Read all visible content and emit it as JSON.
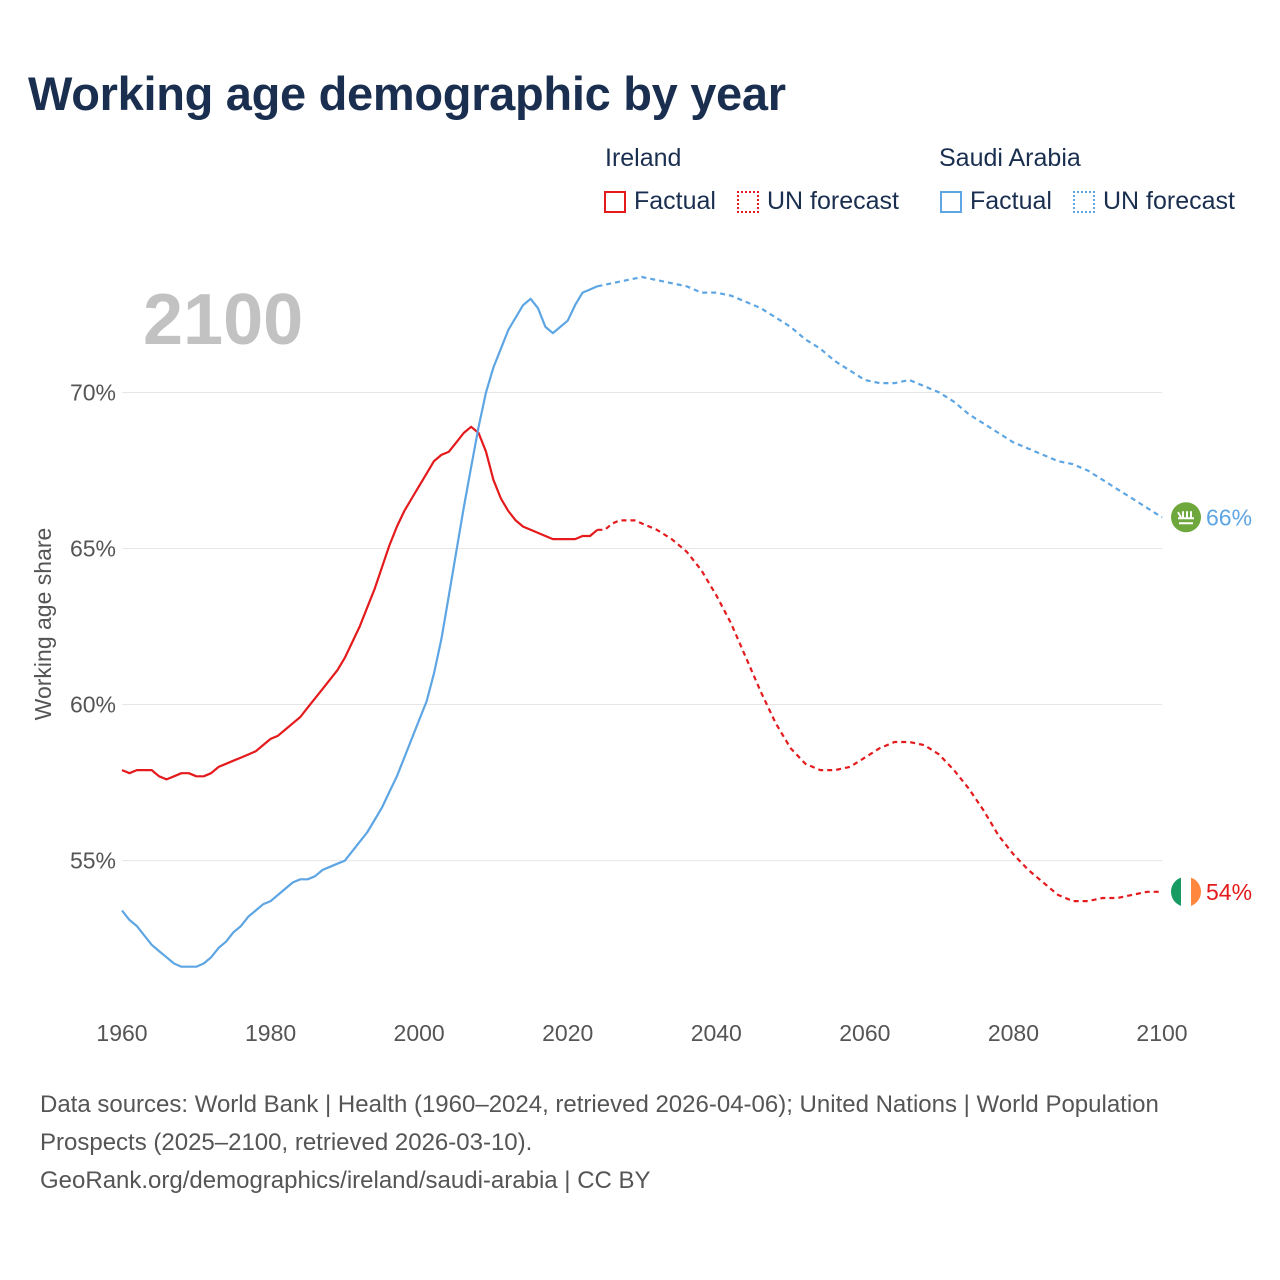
{
  "title": "Working age demographic by year",
  "legend": {
    "groups": [
      {
        "name": "Ireland",
        "color": "#e41a1c",
        "factual_label": "Factual",
        "forecast_label": "UN forecast"
      },
      {
        "name": "Saudi Arabia",
        "color": "#5da5e3",
        "factual_label": "Factual",
        "forecast_label": "UN forecast"
      }
    ]
  },
  "source": {
    "line1": "Data sources: World Bank | Health (1960–2024, retrieved 2026-04-06); United Nations | World Population Prospects (2025–2100, retrieved 2026-03-10).",
    "line2": "GeoRank.org/demographics/ireland/saudi-arabia | CC BY"
  },
  "chart_data": {
    "type": "line",
    "title": "Working age demographic by year",
    "current_year_label": "2100",
    "xlabel": "",
    "ylabel": "Working age share",
    "xlim": [
      1960,
      2100
    ],
    "ylim": [
      50.5,
      74.5
    ],
    "x_ticks": [
      {
        "value": 1960,
        "label": "1960"
      },
      {
        "value": 1980,
        "label": "1980"
      },
      {
        "value": 2000,
        "label": "2000"
      },
      {
        "value": 2020,
        "label": "2020"
      },
      {
        "value": 2040,
        "label": "2040"
      },
      {
        "value": 2060,
        "label": "2060"
      },
      {
        "value": 2080,
        "label": "2080"
      },
      {
        "value": 2100,
        "label": "2100"
      }
    ],
    "y_ticks": [
      {
        "value": 55,
        "label": "55%"
      },
      {
        "value": 60,
        "label": "60%"
      },
      {
        "value": 65,
        "label": "65%"
      },
      {
        "value": 70,
        "label": "70%"
      }
    ],
    "factual_end_year": 2024,
    "series": [
      {
        "name": "Ireland",
        "color": "#e41a1c",
        "end_label": "54%",
        "flag": "ireland-flag",
        "points": [
          [
            1960,
            57.9
          ],
          [
            1961,
            57.8
          ],
          [
            1962,
            57.9
          ],
          [
            1963,
            57.9
          ],
          [
            1964,
            57.9
          ],
          [
            1965,
            57.7
          ],
          [
            1966,
            57.6
          ],
          [
            1967,
            57.7
          ],
          [
            1968,
            57.8
          ],
          [
            1969,
            57.8
          ],
          [
            1970,
            57.7
          ],
          [
            1971,
            57.7
          ],
          [
            1972,
            57.8
          ],
          [
            1973,
            58.0
          ],
          [
            1974,
            58.1
          ],
          [
            1975,
            58.2
          ],
          [
            1976,
            58.3
          ],
          [
            1977,
            58.4
          ],
          [
            1978,
            58.5
          ],
          [
            1979,
            58.7
          ],
          [
            1980,
            58.9
          ],
          [
            1981,
            59.0
          ],
          [
            1982,
            59.2
          ],
          [
            1983,
            59.4
          ],
          [
            1984,
            59.6
          ],
          [
            1985,
            59.9
          ],
          [
            1986,
            60.2
          ],
          [
            1987,
            60.5
          ],
          [
            1988,
            60.8
          ],
          [
            1989,
            61.1
          ],
          [
            1990,
            61.5
          ],
          [
            1991,
            62.0
          ],
          [
            1992,
            62.5
          ],
          [
            1993,
            63.1
          ],
          [
            1994,
            63.7
          ],
          [
            1995,
            64.4
          ],
          [
            1996,
            65.1
          ],
          [
            1997,
            65.7
          ],
          [
            1998,
            66.2
          ],
          [
            1999,
            66.6
          ],
          [
            2000,
            67.0
          ],
          [
            2001,
            67.4
          ],
          [
            2002,
            67.8
          ],
          [
            2003,
            68.0
          ],
          [
            2004,
            68.1
          ],
          [
            2005,
            68.4
          ],
          [
            2006,
            68.7
          ],
          [
            2007,
            68.9
          ],
          [
            2008,
            68.7
          ],
          [
            2009,
            68.1
          ],
          [
            2010,
            67.2
          ],
          [
            2011,
            66.6
          ],
          [
            2012,
            66.2
          ],
          [
            2013,
            65.9
          ],
          [
            2014,
            65.7
          ],
          [
            2015,
            65.6
          ],
          [
            2016,
            65.5
          ],
          [
            2017,
            65.4
          ],
          [
            2018,
            65.3
          ],
          [
            2019,
            65.3
          ],
          [
            2020,
            65.3
          ],
          [
            2021,
            65.3
          ],
          [
            2022,
            65.4
          ],
          [
            2023,
            65.4
          ],
          [
            2024,
            65.6
          ],
          [
            2025,
            65.6
          ],
          [
            2026,
            65.8
          ],
          [
            2027,
            65.9
          ],
          [
            2028,
            65.9
          ],
          [
            2029,
            65.9
          ],
          [
            2030,
            65.8
          ],
          [
            2032,
            65.6
          ],
          [
            2034,
            65.3
          ],
          [
            2036,
            64.9
          ],
          [
            2038,
            64.3
          ],
          [
            2040,
            63.5
          ],
          [
            2042,
            62.6
          ],
          [
            2044,
            61.5
          ],
          [
            2046,
            60.4
          ],
          [
            2048,
            59.4
          ],
          [
            2050,
            58.6
          ],
          [
            2052,
            58.1
          ],
          [
            2054,
            57.9
          ],
          [
            2056,
            57.9
          ],
          [
            2058,
            58.0
          ],
          [
            2060,
            58.3
          ],
          [
            2062,
            58.6
          ],
          [
            2064,
            58.8
          ],
          [
            2066,
            58.8
          ],
          [
            2068,
            58.7
          ],
          [
            2070,
            58.4
          ],
          [
            2072,
            57.9
          ],
          [
            2074,
            57.3
          ],
          [
            2076,
            56.6
          ],
          [
            2078,
            55.8
          ],
          [
            2080,
            55.2
          ],
          [
            2082,
            54.7
          ],
          [
            2084,
            54.3
          ],
          [
            2086,
            53.9
          ],
          [
            2088,
            53.7
          ],
          [
            2090,
            53.7
          ],
          [
            2092,
            53.8
          ],
          [
            2094,
            53.8
          ],
          [
            2096,
            53.9
          ],
          [
            2098,
            54.0
          ],
          [
            2100,
            54.0
          ]
        ]
      },
      {
        "name": "Saudi Arabia",
        "color": "#5da5e3",
        "end_label": "66%",
        "flag": "saudi-arabia-flag",
        "points": [
          [
            1960,
            53.4
          ],
          [
            1961,
            53.1
          ],
          [
            1962,
            52.9
          ],
          [
            1963,
            52.6
          ],
          [
            1964,
            52.3
          ],
          [
            1965,
            52.1
          ],
          [
            1966,
            51.9
          ],
          [
            1967,
            51.7
          ],
          [
            1968,
            51.6
          ],
          [
            1969,
            51.6
          ],
          [
            1970,
            51.6
          ],
          [
            1971,
            51.7
          ],
          [
            1972,
            51.9
          ],
          [
            1973,
            52.2
          ],
          [
            1974,
            52.4
          ],
          [
            1975,
            52.7
          ],
          [
            1976,
            52.9
          ],
          [
            1977,
            53.2
          ],
          [
            1978,
            53.4
          ],
          [
            1979,
            53.6
          ],
          [
            1980,
            53.7
          ],
          [
            1981,
            53.9
          ],
          [
            1982,
            54.1
          ],
          [
            1983,
            54.3
          ],
          [
            1984,
            54.4
          ],
          [
            1985,
            54.4
          ],
          [
            1986,
            54.5
          ],
          [
            1987,
            54.7
          ],
          [
            1988,
            54.8
          ],
          [
            1989,
            54.9
          ],
          [
            1990,
            55.0
          ],
          [
            1991,
            55.3
          ],
          [
            1992,
            55.6
          ],
          [
            1993,
            55.9
          ],
          [
            1994,
            56.3
          ],
          [
            1995,
            56.7
          ],
          [
            1996,
            57.2
          ],
          [
            1997,
            57.7
          ],
          [
            1998,
            58.3
          ],
          [
            1999,
            58.9
          ],
          [
            2000,
            59.5
          ],
          [
            2001,
            60.1
          ],
          [
            2002,
            61.0
          ],
          [
            2003,
            62.1
          ],
          [
            2004,
            63.5
          ],
          [
            2005,
            64.9
          ],
          [
            2006,
            66.3
          ],
          [
            2007,
            67.6
          ],
          [
            2008,
            68.9
          ],
          [
            2009,
            70.0
          ],
          [
            2010,
            70.8
          ],
          [
            2011,
            71.4
          ],
          [
            2012,
            72.0
          ],
          [
            2013,
            72.4
          ],
          [
            2014,
            72.8
          ],
          [
            2015,
            73.0
          ],
          [
            2016,
            72.7
          ],
          [
            2017,
            72.1
          ],
          [
            2018,
            71.9
          ],
          [
            2019,
            72.1
          ],
          [
            2020,
            72.3
          ],
          [
            2021,
            72.8
          ],
          [
            2022,
            73.2
          ],
          [
            2023,
            73.3
          ],
          [
            2024,
            73.4
          ],
          [
            2026,
            73.5
          ],
          [
            2028,
            73.6
          ],
          [
            2030,
            73.7
          ],
          [
            2032,
            73.6
          ],
          [
            2034,
            73.5
          ],
          [
            2036,
            73.4
          ],
          [
            2038,
            73.2
          ],
          [
            2040,
            73.2
          ],
          [
            2042,
            73.1
          ],
          [
            2044,
            72.9
          ],
          [
            2046,
            72.7
          ],
          [
            2048,
            72.4
          ],
          [
            2050,
            72.1
          ],
          [
            2052,
            71.7
          ],
          [
            2054,
            71.4
          ],
          [
            2056,
            71.0
          ],
          [
            2058,
            70.7
          ],
          [
            2060,
            70.4
          ],
          [
            2062,
            70.3
          ],
          [
            2064,
            70.3
          ],
          [
            2066,
            70.4
          ],
          [
            2068,
            70.2
          ],
          [
            2070,
            70.0
          ],
          [
            2072,
            69.7
          ],
          [
            2074,
            69.3
          ],
          [
            2076,
            69.0
          ],
          [
            2078,
            68.7
          ],
          [
            2080,
            68.4
          ],
          [
            2082,
            68.2
          ],
          [
            2084,
            68.0
          ],
          [
            2086,
            67.8
          ],
          [
            2088,
            67.7
          ],
          [
            2090,
            67.5
          ],
          [
            2092,
            67.2
          ],
          [
            2094,
            66.9
          ],
          [
            2096,
            66.6
          ],
          [
            2098,
            66.3
          ],
          [
            2100,
            66.0
          ]
        ]
      }
    ]
  }
}
